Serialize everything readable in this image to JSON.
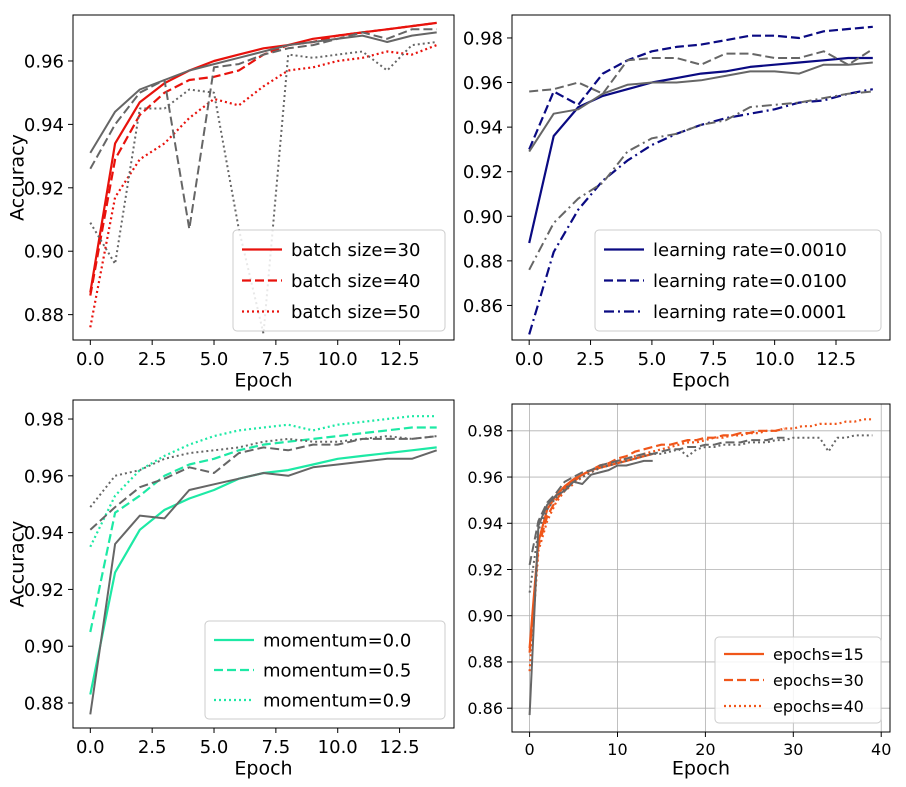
{
  "chart_data": [
    {
      "type": "line",
      "panel": "top-left",
      "xlabel": "Epoch",
      "ylabel": "Accuracy",
      "xlim": [
        -0.7,
        14.7
      ],
      "ylim": [
        0.872,
        0.9745
      ],
      "xticks": [
        0,
        2.5,
        5,
        7.5,
        10,
        12.5
      ],
      "xtick_labels": [
        "0.0",
        "2.5",
        "5.0",
        "7.5",
        "10.0",
        "12.5"
      ],
      "yticks": [
        0.88,
        0.9,
        0.92,
        0.94,
        0.96
      ],
      "ytick_labels": [
        "0.88",
        "0.90",
        "0.92",
        "0.94",
        "0.96"
      ],
      "grid": false,
      "legend_position": "lower-right",
      "x": [
        0,
        1,
        2,
        3,
        4,
        5,
        6,
        7,
        8,
        9,
        10,
        11,
        12,
        13,
        14
      ],
      "series": [
        {
          "name": "batch size=30",
          "color": "#e8120c",
          "style": "solid",
          "legend": true,
          "values": [
            0.887,
            0.934,
            0.947,
            0.953,
            0.957,
            0.96,
            0.962,
            0.964,
            0.965,
            0.967,
            0.968,
            0.969,
            0.97,
            0.971,
            0.972
          ]
        },
        {
          "name": "batch size=40",
          "color": "#e8120c",
          "style": "dashed",
          "legend": true,
          "values": [
            0.886,
            0.929,
            0.943,
            0.95,
            0.954,
            0.955,
            0.957,
            0.962,
            0.965,
            0.966,
            0.968,
            0.969,
            0.97,
            0.971,
            0.972
          ]
        },
        {
          "name": "batch size=50",
          "color": "#e8120c",
          "style": "dotted",
          "legend": true,
          "values": [
            0.876,
            0.917,
            0.929,
            0.934,
            0.942,
            0.948,
            0.946,
            0.952,
            0.957,
            0.958,
            0.96,
            0.961,
            0.963,
            0.962,
            0.965
          ]
        },
        {
          "color": "#666666",
          "style": "solid",
          "legend": false,
          "values": [
            0.931,
            0.944,
            0.951,
            0.954,
            0.957,
            0.959,
            0.961,
            0.963,
            0.965,
            0.966,
            0.967,
            0.968,
            0.966,
            0.968,
            0.969
          ]
        },
        {
          "color": "#666666",
          "style": "dashed",
          "legend": false,
          "values": [
            0.926,
            0.94,
            0.95,
            0.954,
            0.907,
            0.958,
            0.959,
            0.962,
            0.964,
            0.965,
            0.967,
            0.969,
            0.967,
            0.97,
            0.97
          ]
        },
        {
          "color": "#666666",
          "style": "dotted",
          "legend": false,
          "values": [
            0.909,
            0.896,
            0.945,
            0.945,
            0.951,
            0.95,
            0.907,
            0.874,
            0.962,
            0.961,
            0.962,
            0.963,
            0.957,
            0.965,
            0.966
          ]
        }
      ]
    },
    {
      "type": "line",
      "panel": "top-right",
      "xlabel": "Epoch",
      "ylabel": "",
      "xlim": [
        -0.7,
        14.7
      ],
      "ylim": [
        0.8445,
        0.9903
      ],
      "xticks": [
        0,
        2.5,
        5,
        7.5,
        10,
        12.5
      ],
      "xtick_labels": [
        "0.0",
        "2.5",
        "5.0",
        "7.5",
        "10.0",
        "12.5"
      ],
      "yticks": [
        0.86,
        0.88,
        0.9,
        0.92,
        0.94,
        0.96,
        0.98
      ],
      "ytick_labels": [
        "0.86",
        "0.88",
        "0.90",
        "0.92",
        "0.94",
        "0.96",
        "0.98"
      ],
      "grid": false,
      "legend_position": "lower-right",
      "x": [
        0,
        1,
        2,
        3,
        4,
        5,
        6,
        7,
        8,
        9,
        10,
        11,
        12,
        13,
        14
      ],
      "series": [
        {
          "name": "learning rate=0.0010",
          "color": "#0a0a82",
          "style": "solid",
          "legend": true,
          "values": [
            0.888,
            0.936,
            0.949,
            0.954,
            0.957,
            0.96,
            0.962,
            0.964,
            0.965,
            0.967,
            0.968,
            0.969,
            0.97,
            0.971,
            0.971
          ]
        },
        {
          "name": "learning rate=0.0100",
          "color": "#0a0a82",
          "style": "dashed",
          "legend": true,
          "values": [
            0.93,
            0.956,
            0.95,
            0.964,
            0.97,
            0.974,
            0.976,
            0.977,
            0.979,
            0.981,
            0.981,
            0.98,
            0.983,
            0.984,
            0.985
          ]
        },
        {
          "name": "learning rate=0.0001",
          "color": "#0a0a82",
          "style": "dashdot",
          "legend": true,
          "values": [
            0.847,
            0.884,
            0.903,
            0.916,
            0.925,
            0.932,
            0.937,
            0.941,
            0.944,
            0.946,
            0.948,
            0.951,
            0.952,
            0.955,
            0.957
          ]
        },
        {
          "color": "#666666",
          "style": "solid",
          "legend": false,
          "values": [
            0.929,
            0.946,
            0.948,
            0.955,
            0.959,
            0.96,
            0.96,
            0.961,
            0.963,
            0.965,
            0.965,
            0.964,
            0.968,
            0.968,
            0.969
          ]
        },
        {
          "color": "#666666",
          "style": "dashed",
          "legend": false,
          "values": [
            0.956,
            0.957,
            0.96,
            0.955,
            0.97,
            0.971,
            0.971,
            0.968,
            0.973,
            0.973,
            0.971,
            0.971,
            0.974,
            0.968,
            0.975
          ]
        },
        {
          "color": "#666666",
          "style": "dashdot",
          "legend": false,
          "values": [
            0.876,
            0.897,
            0.908,
            0.915,
            0.929,
            0.935,
            0.937,
            0.941,
            0.943,
            0.949,
            0.95,
            0.951,
            0.953,
            0.955,
            0.956
          ]
        }
      ]
    },
    {
      "type": "line",
      "panel": "bottom-left",
      "xlabel": "Epoch",
      "ylabel": "Accuracy",
      "xlim": [
        -0.7,
        14.7
      ],
      "ylim": [
        0.8712,
        0.9867
      ],
      "xticks": [
        0,
        2.5,
        5,
        7.5,
        10,
        12.5
      ],
      "xtick_labels": [
        "0.0",
        "2.5",
        "5.0",
        "7.5",
        "10.0",
        "12.5"
      ],
      "yticks": [
        0.88,
        0.9,
        0.92,
        0.94,
        0.96,
        0.98
      ],
      "ytick_labels": [
        "0.88",
        "0.90",
        "0.92",
        "0.94",
        "0.96",
        "0.98"
      ],
      "grid": false,
      "legend_position": "lower-right",
      "x": [
        0,
        1,
        2,
        3,
        4,
        5,
        6,
        7,
        8,
        9,
        10,
        11,
        12,
        13,
        14
      ],
      "series": [
        {
          "name": "momentum=0.0",
          "color": "#1de9a5",
          "style": "solid",
          "legend": true,
          "values": [
            0.883,
            0.926,
            0.941,
            0.948,
            0.952,
            0.955,
            0.959,
            0.961,
            0.962,
            0.964,
            0.966,
            0.967,
            0.968,
            0.969,
            0.97
          ]
        },
        {
          "name": "momentum=0.5",
          "color": "#1de9a5",
          "style": "dashed",
          "legend": true,
          "values": [
            0.905,
            0.947,
            0.953,
            0.96,
            0.964,
            0.966,
            0.969,
            0.971,
            0.972,
            0.973,
            0.974,
            0.975,
            0.976,
            0.977,
            0.977
          ]
        },
        {
          "name": "momentum=0.9",
          "color": "#1de9a5",
          "style": "dotted",
          "legend": true,
          "values": [
            0.935,
            0.953,
            0.962,
            0.967,
            0.971,
            0.974,
            0.976,
            0.977,
            0.978,
            0.976,
            0.978,
            0.979,
            0.98,
            0.981,
            0.981
          ]
        },
        {
          "color": "#666666",
          "style": "solid",
          "legend": false,
          "values": [
            0.876,
            0.936,
            0.946,
            0.945,
            0.955,
            0.957,
            0.959,
            0.961,
            0.96,
            0.963,
            0.964,
            0.965,
            0.966,
            0.966,
            0.969
          ]
        },
        {
          "color": "#666666",
          "style": "dashed",
          "legend": false,
          "values": [
            0.941,
            0.949,
            0.956,
            0.959,
            0.963,
            0.961,
            0.968,
            0.97,
            0.969,
            0.971,
            0.971,
            0.973,
            0.973,
            0.973,
            0.974
          ]
        },
        {
          "color": "#666666",
          "style": "dotted",
          "legend": false,
          "values": [
            0.949,
            0.96,
            0.962,
            0.966,
            0.968,
            0.969,
            0.97,
            0.972,
            0.973,
            0.972,
            0.972,
            0.973,
            0.974,
            0.973,
            0.974
          ]
        }
      ]
    },
    {
      "type": "line",
      "panel": "bottom-right",
      "xlabel": "Epoch",
      "ylabel": "",
      "xlim": [
        -2,
        41
      ],
      "ylim": [
        0.8497,
        0.9916
      ],
      "xticks": [
        0,
        10,
        20,
        30,
        40
      ],
      "xtick_labels": [
        "0",
        "10",
        "20",
        "30",
        "40"
      ],
      "yticks": [
        0.86,
        0.88,
        0.9,
        0.92,
        0.94,
        0.96,
        0.98
      ],
      "ytick_labels": [
        "0.86",
        "0.88",
        "0.90",
        "0.92",
        "0.94",
        "0.96",
        "0.98"
      ],
      "grid": true,
      "legend_position": "lower-right",
      "series": [
        {
          "name": "epochs=15",
          "color": "#f0561a",
          "style": "solid",
          "legend": true,
          "x": [
            0,
            1,
            2,
            3,
            4,
            5,
            6,
            7,
            8,
            9,
            10,
            11,
            12,
            13,
            14
          ],
          "values": [
            0.886,
            0.932,
            0.946,
            0.952,
            0.956,
            0.959,
            0.961,
            0.963,
            0.964,
            0.965,
            0.966,
            0.967,
            0.968,
            0.969,
            0.97
          ]
        },
        {
          "name": "epochs=30",
          "color": "#f0561a",
          "style": "dashed",
          "legend": true,
          "x": [
            0,
            1,
            2,
            3,
            4,
            5,
            6,
            7,
            8,
            9,
            10,
            11,
            12,
            13,
            14,
            15,
            16,
            17,
            18,
            19,
            20,
            21,
            22,
            23,
            24,
            25,
            26,
            27,
            28,
            29
          ],
          "values": [
            0.884,
            0.93,
            0.943,
            0.95,
            0.955,
            0.958,
            0.961,
            0.963,
            0.965,
            0.966,
            0.968,
            0.969,
            0.971,
            0.972,
            0.973,
            0.974,
            0.974,
            0.975,
            0.976,
            0.976,
            0.977,
            0.977,
            0.978,
            0.978,
            0.979,
            0.979,
            0.98,
            0.98,
            0.98,
            0.981
          ]
        },
        {
          "name": "epochs=40",
          "color": "#f0561a",
          "style": "dotted",
          "legend": true,
          "x": [
            0,
            1,
            2,
            3,
            4,
            5,
            6,
            7,
            8,
            9,
            10,
            11,
            12,
            13,
            14,
            15,
            16,
            17,
            18,
            19,
            20,
            21,
            22,
            23,
            24,
            25,
            26,
            27,
            28,
            29,
            30,
            31,
            32,
            33,
            34,
            35,
            36,
            37,
            38,
            39
          ],
          "values": [
            0.876,
            0.928,
            0.941,
            0.949,
            0.954,
            0.957,
            0.96,
            0.962,
            0.964,
            0.965,
            0.967,
            0.968,
            0.969,
            0.97,
            0.971,
            0.972,
            0.973,
            0.974,
            0.975,
            0.975,
            0.976,
            0.977,
            0.977,
            0.978,
            0.978,
            0.979,
            0.979,
            0.98,
            0.98,
            0.981,
            0.981,
            0.982,
            0.982,
            0.983,
            0.983,
            0.983,
            0.984,
            0.984,
            0.985,
            0.985
          ]
        },
        {
          "color": "#666666",
          "style": "solid",
          "legend": false,
          "x": [
            0,
            1,
            2,
            3,
            4,
            5,
            6,
            7,
            8,
            9,
            10,
            11,
            12,
            13,
            14
          ],
          "values": [
            0.857,
            0.939,
            0.948,
            0.952,
            0.954,
            0.958,
            0.957,
            0.961,
            0.962,
            0.963,
            0.965,
            0.965,
            0.966,
            0.967,
            0.967
          ]
        },
        {
          "color": "#666666",
          "style": "dashed",
          "legend": false,
          "x": [
            0,
            1,
            2,
            3,
            4,
            5,
            6,
            7,
            8,
            9,
            10,
            11,
            12,
            13,
            14,
            15,
            16,
            17,
            18,
            19,
            20,
            21,
            22,
            23,
            24,
            25,
            26,
            27,
            28,
            29
          ],
          "values": [
            0.922,
            0.941,
            0.949,
            0.953,
            0.958,
            0.96,
            0.962,
            0.963,
            0.965,
            0.966,
            0.967,
            0.968,
            0.969,
            0.97,
            0.97,
            0.971,
            0.972,
            0.972,
            0.973,
            0.973,
            0.974,
            0.974,
            0.975,
            0.975,
            0.975,
            0.976,
            0.976,
            0.976,
            0.977,
            0.977
          ]
        },
        {
          "color": "#666666",
          "style": "dotted",
          "legend": false,
          "x": [
            0,
            1,
            2,
            3,
            4,
            5,
            6,
            7,
            8,
            9,
            10,
            11,
            12,
            13,
            14,
            15,
            16,
            17,
            18,
            19,
            20,
            21,
            22,
            23,
            24,
            25,
            26,
            27,
            28,
            29,
            30,
            31,
            32,
            33,
            34,
            35,
            36,
            37,
            38,
            39
          ],
          "values": [
            0.91,
            0.937,
            0.946,
            0.951,
            0.955,
            0.958,
            0.96,
            0.962,
            0.964,
            0.965,
            0.966,
            0.967,
            0.968,
            0.969,
            0.97,
            0.97,
            0.971,
            0.972,
            0.969,
            0.972,
            0.973,
            0.973,
            0.974,
            0.974,
            0.974,
            0.975,
            0.975,
            0.975,
            0.976,
            0.976,
            0.977,
            0.977,
            0.977,
            0.977,
            0.971,
            0.977,
            0.977,
            0.978,
            0.978,
            0.978
          ]
        }
      ]
    }
  ]
}
